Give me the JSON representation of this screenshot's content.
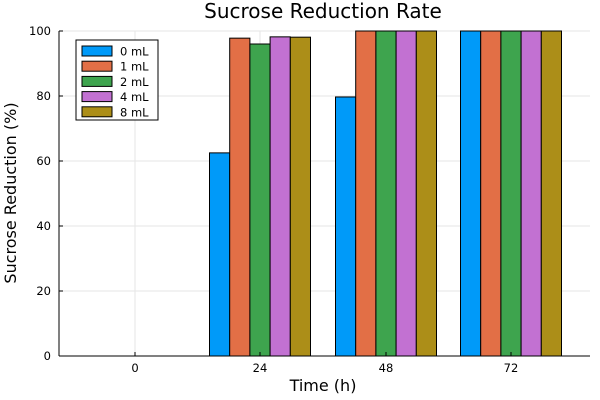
{
  "chart_data": {
    "type": "bar",
    "title": "Sucrose Reduction Rate",
    "xlabel": "Time (h)",
    "ylabel": "Sucrose Reduction (%)",
    "categories": [
      "0",
      "24",
      "48",
      "72"
    ],
    "yticks": [
      "0",
      "20",
      "40",
      "60",
      "80",
      "100"
    ],
    "ylim": [
      0,
      100
    ],
    "grid": true,
    "legend_position": "top-left",
    "series": [
      {
        "name": "0 mL",
        "color": "#009af9",
        "values": [
          0,
          62.5,
          79.7,
          100
        ]
      },
      {
        "name": "1 mL",
        "color": "#e26f46",
        "values": [
          0,
          97.8,
          100,
          100
        ]
      },
      {
        "name": "2 mL",
        "color": "#3ea44e",
        "values": [
          0,
          96.0,
          100,
          100
        ]
      },
      {
        "name": "4 mL",
        "color": "#c271d2",
        "values": [
          0,
          98.2,
          100,
          100
        ]
      },
      {
        "name": "8 mL",
        "color": "#ac8e18",
        "values": [
          0,
          98.1,
          100,
          100
        ]
      }
    ]
  }
}
